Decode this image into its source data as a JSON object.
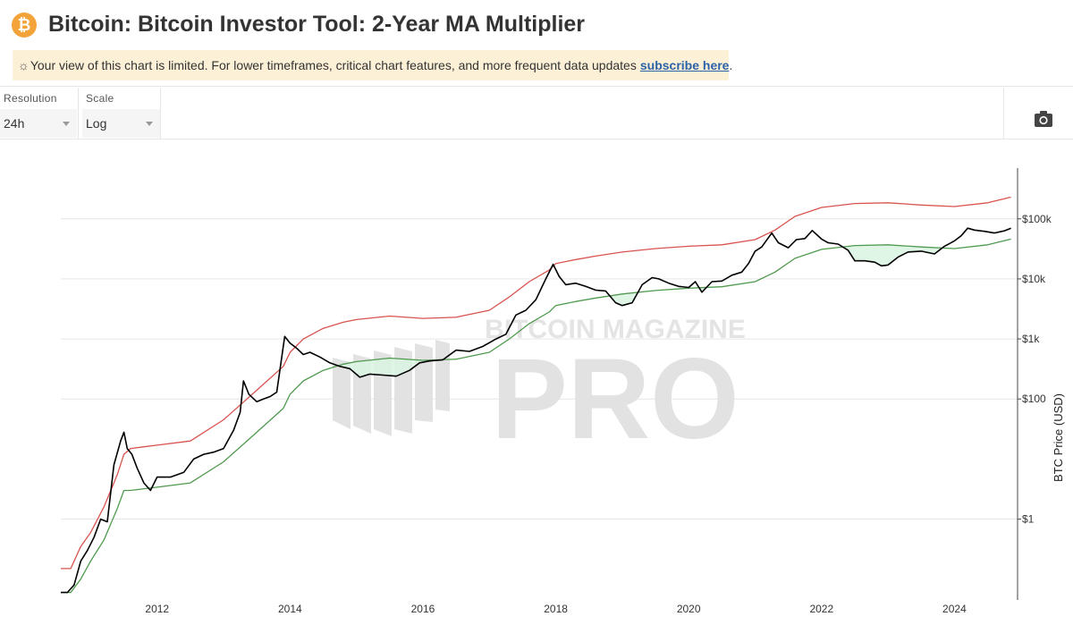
{
  "header": {
    "logo_glyph": "₿",
    "title": "Bitcoin: Bitcoin Investor Tool: 2-Year MA Multiplier"
  },
  "notice": {
    "icon": "sun-icon",
    "text": "Your view of this chart is limited. For lower timeframes, critical chart features, and more frequent data updates",
    "link": "subscribe here",
    "suffix": "."
  },
  "controls": {
    "resolution_label": "Resolution",
    "resolution_value": "24h",
    "scale_label": "Scale",
    "scale_value": "Log",
    "camera_icon": "camera-icon"
  },
  "watermark": {
    "line1": "BITCOIN MAGAZINE",
    "line2": "PRO"
  },
  "chart_data": {
    "type": "line",
    "x_scale": "time",
    "y_scale": "log",
    "ylabel": "BTC Price (USD)",
    "xlim": [
      2010.55,
      2024.95
    ],
    "ylim": [
      0.045,
      700000
    ],
    "x_ticks": [
      {
        "value": 2012,
        "label": "2012"
      },
      {
        "value": 2014,
        "label": "2014"
      },
      {
        "value": 2016,
        "label": "2016"
      },
      {
        "value": 2018,
        "label": "2018"
      },
      {
        "value": 2020,
        "label": "2020"
      },
      {
        "value": 2022,
        "label": "2022"
      },
      {
        "value": 2024,
        "label": "2024"
      }
    ],
    "y_ticks": [
      {
        "value": 1,
        "label": "$1"
      },
      {
        "value": 100,
        "label": "$100"
      },
      {
        "value": 1000,
        "label": "$1k"
      },
      {
        "value": 10000,
        "label": "$10k"
      },
      {
        "value": 100000,
        "label": "$100k"
      }
    ],
    "grid": true,
    "colors": {
      "price": "#000000",
      "upper": "#d9534f",
      "lower": "#4f9a4f",
      "fill": "#d9f3e0"
    },
    "series": [
      {
        "key": "upper",
        "x": [
          2010.55,
          2010.7,
          2010.85,
          2011.0,
          2011.2,
          2011.4,
          2011.5,
          2011.6,
          2011.8,
          2012.0,
          2012.5,
          2013.0,
          2013.5,
          2013.9,
          2014.0,
          2014.2,
          2014.5,
          2014.8,
          2015.0,
          2015.5,
          2016.0,
          2016.5,
          2017.0,
          2017.3,
          2017.6,
          2017.9,
          2018.0,
          2018.3,
          2018.6,
          2019.0,
          2019.5,
          2020.0,
          2020.5,
          2021.0,
          2021.3,
          2021.6,
          2022.0,
          2022.5,
          2023.0,
          2023.5,
          2024.0,
          2024.5,
          2024.85
        ],
        "values": [
          0.15,
          0.15,
          0.35,
          0.6,
          1.6,
          5.5,
          12,
          15,
          16,
          17,
          20,
          45,
          140,
          350,
          600,
          1000,
          1500,
          1900,
          2100,
          2400,
          2200,
          2300,
          3000,
          5000,
          9000,
          14000,
          18000,
          21000,
          24000,
          28000,
          32000,
          35000,
          37000,
          45000,
          65000,
          110000,
          155000,
          180000,
          185000,
          170000,
          160000,
          185000,
          230000
        ]
      },
      {
        "key": "lower",
        "x": [
          2010.55,
          2010.7,
          2010.85,
          2011.0,
          2011.2,
          2011.4,
          2011.5,
          2011.6,
          2011.8,
          2012.0,
          2012.5,
          2013.0,
          2013.5,
          2013.9,
          2014.0,
          2014.2,
          2014.5,
          2014.8,
          2015.0,
          2015.5,
          2016.0,
          2016.5,
          2017.0,
          2017.3,
          2017.6,
          2017.9,
          2018.0,
          2018.3,
          2018.6,
          2019.0,
          2019.5,
          2020.0,
          2020.5,
          2021.0,
          2021.3,
          2021.6,
          2022.0,
          2022.5,
          2023.0,
          2023.5,
          2024.0,
          2024.5,
          2024.85
        ],
        "values": [
          0.06,
          0.06,
          0.1,
          0.2,
          0.45,
          1.5,
          3.0,
          3.0,
          3.2,
          3.4,
          4.0,
          9,
          28,
          70,
          120,
          200,
          300,
          380,
          420,
          480,
          440,
          460,
          600,
          1000,
          1800,
          2800,
          3600,
          4200,
          4800,
          5600,
          6400,
          7000,
          7400,
          9000,
          13000,
          22000,
          31000,
          36000,
          37000,
          34000,
          32000,
          37000,
          46000
        ]
      },
      {
        "key": "price",
        "x": [
          2010.55,
          2010.65,
          2010.75,
          2010.85,
          2010.95,
          2011.05,
          2011.15,
          2011.25,
          2011.35,
          2011.45,
          2011.5,
          2011.55,
          2011.62,
          2011.7,
          2011.8,
          2011.9,
          2012.0,
          2012.1,
          2012.2,
          2012.4,
          2012.55,
          2012.7,
          2012.85,
          2013.0,
          2013.15,
          2013.25,
          2013.3,
          2013.38,
          2013.5,
          2013.6,
          2013.7,
          2013.8,
          2013.92,
          2014.0,
          2014.1,
          2014.2,
          2014.3,
          2014.45,
          2014.6,
          2014.75,
          2014.9,
          2015.05,
          2015.2,
          2015.4,
          2015.6,
          2015.8,
          2015.95,
          2016.1,
          2016.3,
          2016.5,
          2016.7,
          2016.9,
          2017.1,
          2017.25,
          2017.4,
          2017.55,
          2017.7,
          2017.85,
          2017.96,
          2018.05,
          2018.15,
          2018.3,
          2018.45,
          2018.6,
          2018.75,
          2018.9,
          2019.0,
          2019.15,
          2019.3,
          2019.45,
          2019.55,
          2019.7,
          2019.85,
          2020.0,
          2020.1,
          2020.2,
          2020.35,
          2020.5,
          2020.65,
          2020.8,
          2020.9,
          2021.0,
          2021.1,
          2021.25,
          2021.35,
          2021.5,
          2021.62,
          2021.75,
          2021.86,
          2022.0,
          2022.1,
          2022.25,
          2022.4,
          2022.5,
          2022.65,
          2022.8,
          2022.9,
          2023.0,
          2023.15,
          2023.3,
          2023.5,
          2023.7,
          2023.85,
          2024.0,
          2024.1,
          2024.2,
          2024.3,
          2024.45,
          2024.6,
          2024.75,
          2024.85
        ],
        "values": [
          0.06,
          0.06,
          0.08,
          0.2,
          0.3,
          0.5,
          1.0,
          0.9,
          8,
          20,
          28,
          15,
          12,
          7,
          4,
          3,
          5,
          5,
          5,
          6,
          10,
          12,
          13,
          15,
          30,
          60,
          200,
          120,
          90,
          100,
          110,
          130,
          1100,
          850,
          700,
          550,
          600,
          500,
          400,
          350,
          320,
          230,
          260,
          250,
          240,
          300,
          400,
          430,
          450,
          650,
          620,
          750,
          1000,
          1200,
          2500,
          3000,
          4500,
          10000,
          17500,
          11000,
          8000,
          8500,
          7500,
          6500,
          6300,
          4000,
          3600,
          4000,
          8000,
          10500,
          10000,
          8500,
          7500,
          7200,
          9000,
          6000,
          9000,
          9200,
          11500,
          13000,
          18000,
          29000,
          34000,
          58000,
          40000,
          33000,
          45000,
          47000,
          64000,
          46000,
          40000,
          38000,
          30000,
          20000,
          20000,
          19000,
          16500,
          17000,
          23000,
          28000,
          29000,
          26000,
          35000,
          43000,
          52000,
          70000,
          65000,
          62000,
          58000,
          63000,
          70000
        ]
      }
    ]
  }
}
